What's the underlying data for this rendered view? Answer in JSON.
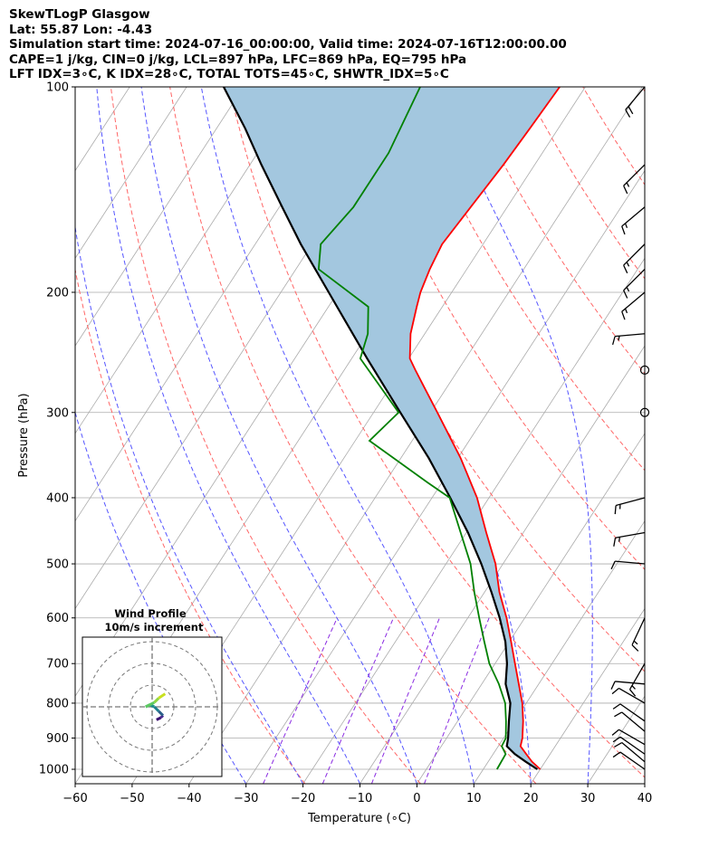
{
  "header": {
    "line1": "SkewTLogP Glasgow",
    "line2": "Lat: 55.87   Lon: -4.43",
    "line3": "Simulation start time: 2024-07-16_00:00:00, Valid time: 2024-07-16T12:00:00.00",
    "line4": "CAPE=1 j/kg, CIN=0 j/kg, LCL=897 hPa, LFC=869 hPa, EQ=795 hPa",
    "line5": "LFT IDX=3∘C, K IDX=28∘C, TOTAL TOTS=45∘C, SHWTR_IDX=5∘C"
  },
  "colors": {
    "temperature": "#ff0000",
    "dewpoint": "#008000",
    "parcel": "#000000",
    "cape_fill": "#a3c7df",
    "dry_adiabat": "#ff6666",
    "moist_adiabat": "#5555ff",
    "mixing_ratio": "#8a2be2",
    "isotherm": "#aaaaaa"
  },
  "chart_data": {
    "type": "skewt",
    "xlabel": "Temperature (∘C)",
    "ylabel": "Pressure (hPa)",
    "xlim": [
      -60,
      40
    ],
    "ylim": [
      1050,
      100
    ],
    "skew": 35,
    "xticks": [
      -60,
      -50,
      -40,
      -30,
      -20,
      -10,
      0,
      10,
      20,
      30,
      40
    ],
    "xtick_labels": [
      "−60",
      "−50",
      "−40",
      "−30",
      "−20",
      "−10",
      "0",
      "10",
      "20",
      "30",
      "40"
    ],
    "yticks": [
      1000,
      900,
      800,
      700,
      600,
      500,
      400,
      300,
      200,
      100
    ],
    "ytick_labels": [
      "1000",
      "900",
      "800",
      "700",
      "600",
      "500",
      "400",
      "300",
      "200",
      "100"
    ],
    "series": [
      {
        "name": "Temperature",
        "p": [
          1000,
          975,
          950,
          925,
          900,
          850,
          800,
          750,
          700,
          650,
          600,
          550,
          500,
          450,
          400,
          350,
          300,
          275,
          260,
          250,
          230,
          210,
          200,
          185,
          170,
          150,
          130,
          115,
          100
        ],
        "t": [
          20,
          17.7,
          15.8,
          13.9,
          13.3,
          11.5,
          9.3,
          6.5,
          3.5,
          0.3,
          -3.2,
          -7.4,
          -11.3,
          -16.5,
          -22.1,
          -29.5,
          -38.8,
          -44.1,
          -47.5,
          -49.8,
          -52.5,
          -54.5,
          -55.5,
          -56.5,
          -57.2,
          -56.4,
          -55.5,
          -55.0,
          -54.5
        ]
      },
      {
        "name": "Dewpoint",
        "p": [
          1000,
          950,
          925,
          900,
          850,
          800,
          750,
          700,
          650,
          600,
          550,
          500,
          450,
          400,
          380,
          330,
          300,
          250,
          230,
          210,
          185,
          170,
          150,
          125,
          100
        ],
        "t": [
          12.4,
          12.2,
          10.6,
          10.4,
          8.5,
          6.3,
          3.0,
          -1.0,
          -4.4,
          -8.0,
          -11.8,
          -15.7,
          -21.0,
          -26.9,
          -32.5,
          -47.5,
          -45.6,
          -58.5,
          -60.0,
          -63.0,
          -76.0,
          -78.5,
          -77.0,
          -77.0,
          -79.0
        ]
      },
      {
        "name": "Parcel",
        "p": [
          1000,
          975,
          950,
          925,
          900,
          850,
          800,
          750,
          700,
          650,
          600,
          550,
          500,
          450,
          400,
          350,
          300,
          250,
          200,
          170,
          150,
          130,
          115,
          100
        ],
        "t": [
          19.5,
          16.6,
          13.8,
          11.5,
          10.8,
          9.0,
          7.2,
          4.2,
          2.1,
          -0.7,
          -4.4,
          -8.8,
          -13.8,
          -19.7,
          -26.8,
          -35.1,
          -45.3,
          -57.3,
          -71.6,
          -82.0,
          -89.5,
          -98.0,
          -105.0,
          -113.5
        ]
      }
    ],
    "dry_adiabats_K": [
      250,
      270,
      290,
      310,
      330,
      350,
      370,
      390,
      410,
      430,
      450,
      470
    ],
    "moist_adiabats_C": [
      -30,
      -20,
      -10,
      0,
      10,
      20,
      30,
      40,
      50,
      60
    ],
    "mixing_ratios": [
      0.4,
      1,
      2,
      4
    ],
    "wind_barbs": [
      {
        "p": 100,
        "speed": 20,
        "dir": 220
      },
      {
        "p": 130,
        "speed": 15,
        "dir": 225
      },
      {
        "p": 150,
        "speed": 15,
        "dir": 230
      },
      {
        "p": 170,
        "speed": 15,
        "dir": 225
      },
      {
        "p": 185,
        "speed": 15,
        "dir": 225
      },
      {
        "p": 200,
        "speed": 15,
        "dir": 230
      },
      {
        "p": 230,
        "speed": 15,
        "dir": 265
      },
      {
        "p": 260,
        "speed": 0,
        "dir": 0
      },
      {
        "p": 300,
        "speed": 0,
        "dir": 0
      },
      {
        "p": 400,
        "speed": 15,
        "dir": 255
      },
      {
        "p": 450,
        "speed": 15,
        "dir": 260
      },
      {
        "p": 500,
        "speed": 10,
        "dir": 275
      },
      {
        "p": 600,
        "speed": 15,
        "dir": 205
      },
      {
        "p": 700,
        "speed": 15,
        "dir": 210
      },
      {
        "p": 750,
        "speed": 10,
        "dir": 275
      },
      {
        "p": 800,
        "speed": 10,
        "dir": 300
      },
      {
        "p": 850,
        "speed": 10,
        "dir": 305
      },
      {
        "p": 880,
        "speed": 10,
        "dir": 310
      },
      {
        "p": 920,
        "speed": 10,
        "dir": 300
      },
      {
        "p": 950,
        "speed": 10,
        "dir": 305
      },
      {
        "p": 975,
        "speed": 10,
        "dir": 310
      },
      {
        "p": 1000,
        "speed": 10,
        "dir": 305
      }
    ]
  },
  "inset": {
    "title": "Wind Profile",
    "subtitle": "10m/s increment",
    "hodograph": {
      "u": [
        1,
        2,
        2.5,
        1.5,
        0.5,
        -0.5,
        -1.5,
        0.5,
        1.5,
        3
      ],
      "v": [
        -3,
        -2.5,
        -2,
        -1,
        0,
        0.5,
        0,
        1,
        2,
        3
      ]
    }
  }
}
